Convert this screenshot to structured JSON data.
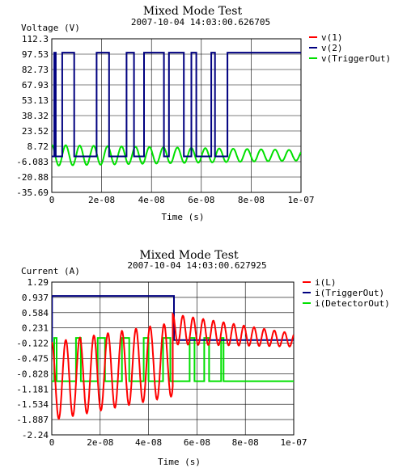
{
  "chart_data": [
    {
      "type": "line",
      "title": "Mixed Mode Test",
      "subtitle": "2007-10-04 14:03:00.626705",
      "ylabel": "Voltage (V)",
      "xlabel": "Time (s)",
      "grid": true,
      "legend_position": "right",
      "xlim": [
        0,
        1e-07
      ],
      "ylim": [
        -35.69,
        112.3
      ],
      "x_ticks": [
        "0",
        "2e-08",
        "4e-08",
        "6e-08",
        "8e-08",
        "1e-07"
      ],
      "y_ticks": [
        "112.3",
        "97.53",
        "82.73",
        "67.93",
        "53.13",
        "38.32",
        "23.52",
        "8.72",
        "-6.083",
        "-20.88",
        "-35.69"
      ],
      "series": [
        {
          "name": "v(1)",
          "color": "#ff0000",
          "values": []
        },
        {
          "name": "v(2)",
          "color": "#000080",
          "x": [
            0,
            1e-09,
            1e-09,
            1.6e-09,
            1.6e-09,
            4.2e-09,
            4.2e-09,
            9e-09,
            9e-09,
            1.8e-08,
            1.8e-08,
            2.3e-08,
            2.3e-08,
            3e-08,
            3e-08,
            3.3e-08,
            3.3e-08,
            3.7e-08,
            3.7e-08,
            4.5e-08,
            4.5e-08,
            4.7e-08,
            4.7e-08,
            5.3e-08,
            5.3e-08,
            5.6e-08,
            5.6e-08,
            5.8e-08,
            5.8e-08,
            6.4e-08,
            6.4e-08,
            6.55e-08,
            6.55e-08,
            7.05e-08,
            7.05e-08,
            7.2e-08,
            7.2e-08,
            1e-07
          ],
          "values": [
            -1,
            -1,
            99,
            99,
            -1,
            -1,
            99,
            99,
            -1,
            -1,
            99,
            99,
            -1,
            -1,
            99,
            99,
            -1,
            -1,
            99,
            99,
            -1,
            -1,
            99,
            99,
            -1,
            -1,
            99,
            99,
            -1,
            -1,
            99,
            99,
            -1,
            -1,
            99,
            99,
            99,
            99
          ]
        },
        {
          "name": "v(TriggerOut)",
          "color": "#00e000",
          "waveform": {
            "t0": 0,
            "t1": 1e-07,
            "offset": 0,
            "amp_start": 10,
            "amp_end": 5,
            "period": 5.6e-09
          }
        }
      ]
    },
    {
      "type": "line",
      "title": "Mixed Mode Test",
      "subtitle": "2007-10-04 14:03:00.627925",
      "ylabel": "Current (A)",
      "xlabel": "Time (s)",
      "grid": true,
      "legend_position": "right",
      "xlim": [
        0,
        1e-07
      ],
      "ylim": [
        -2.24,
        1.29
      ],
      "x_ticks": [
        "0",
        "2e-08",
        "4e-08",
        "6e-08",
        "8e-08",
        "1e-07"
      ],
      "y_ticks": [
        "1.29",
        "0.937",
        "0.584",
        "0.231",
        "-0.122",
        "-0.475",
        "-0.828",
        "-1.181",
        "-1.534",
        "-1.887",
        "-2.24"
      ],
      "series": [
        {
          "name": "i(L)",
          "color": "#ff0000",
          "waveform_pieces": [
            {
              "t0": 0,
              "t1": 5e-08,
              "offset_start": -1.0,
              "offset_end": -0.5,
              "amp_start": 0.9,
              "amp_end": 0.85,
              "period": 5.8e-09
            },
            {
              "t0": 5e-08,
              "t1": 1e-07,
              "offset_start": 0.2,
              "offset_end": -0.05,
              "amp_start": 0.35,
              "amp_end": 0.15,
              "period": 4.2e-09
            }
          ]
        },
        {
          "name": "i(TriggerOut)",
          "color": "#000080",
          "x": [
            0,
            1e-10,
            1e-10,
            5.05e-08,
            5.05e-08,
            1e-07
          ],
          "values": [
            -0.1,
            -0.1,
            0.97,
            0.97,
            -0.05,
            -0.05
          ]
        },
        {
          "name": "i(DetectorOut)",
          "color": "#00e000",
          "pulses_high": [
            [
              1e-09,
              2e-09
            ],
            [
              1e-08,
              1.2e-08
            ],
            [
              1.9e-08,
              2.2e-08
            ],
            [
              2.9e-08,
              3.2e-08
            ],
            [
              3.8e-08,
              4e-08
            ],
            [
              4.6e-08,
              4.9e-08
            ],
            [
              5.7e-08,
              5.9e-08
            ],
            [
              6.3e-08,
              6.5e-08
            ],
            [
              7e-08,
              7.1e-08
            ]
          ],
          "high": 0.0,
          "low": -1.0
        }
      ]
    }
  ]
}
